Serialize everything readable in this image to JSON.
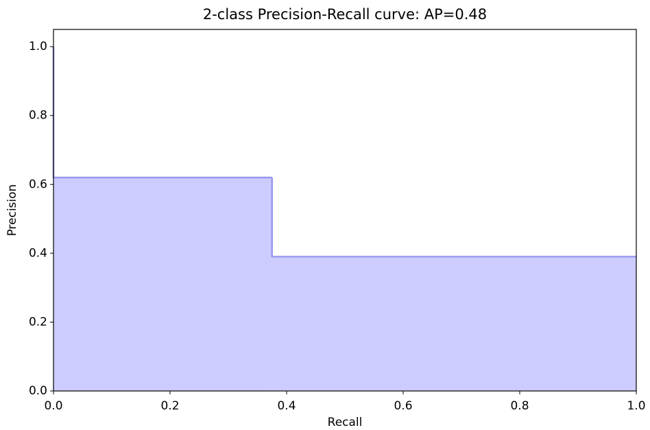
{
  "chart_data": {
    "type": "step",
    "title": "2-class Precision-Recall curve: AP=0.48",
    "x_label": "Recall",
    "y_label": "Precision",
    "x": [
      0.0,
      0.0,
      0.375,
      1.0
    ],
    "values": [
      1.0,
      0.62,
      0.39,
      0.39
    ],
    "color": "#9999ee",
    "fill_color": "#ccccff",
    "xlim": [
      0,
      1
    ],
    "ylim": [
      0,
      1.05
    ],
    "xticks": [
      {
        "value": 0,
        "label": "0.0"
      },
      {
        "value": 0.2,
        "label": "0.2"
      },
      {
        "value": 0.4,
        "label": "0.4"
      },
      {
        "value": 0.6,
        "label": "0.6"
      },
      {
        "value": 0.8,
        "label": "0.8"
      },
      {
        "value": 1,
        "label": "1.0"
      }
    ],
    "yticks": [
      {
        "value": 0,
        "label": "0.0"
      },
      {
        "value": 0.2,
        "label": "0.2"
      },
      {
        "value": 0.4,
        "label": "0.4"
      },
      {
        "value": 0.6,
        "label": "0.6"
      },
      {
        "value": 0.8,
        "label": "0.8"
      },
      {
        "value": 1,
        "label": "1.0"
      }
    ]
  }
}
